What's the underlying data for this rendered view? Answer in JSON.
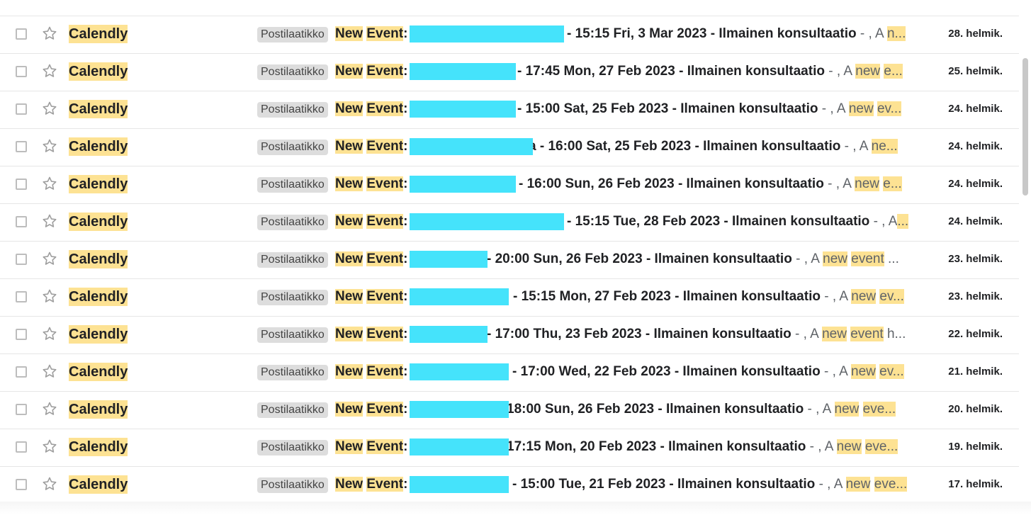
{
  "emails": [
    {
      "sender": "Calendly",
      "label": "Postilaatikko",
      "subject_word1": "New",
      "subject_word2": "Event",
      "subject_colon": ":",
      "tail": "- 15:15 Fri, 3 Mar 2023 - Ilmainen konsultaatio",
      "snippet_pre": " - , A ",
      "snippet_hl1": "n...",
      "snippet_hl2": "",
      "snippet_post": "",
      "date": "28. helmik."
    },
    {
      "sender": "Calendly",
      "label": "Postilaatikko",
      "subject_word1": "New",
      "subject_word2": "Event",
      "subject_colon": ":",
      "tail": "- 17:45 Mon, 27 Feb 2023 - Ilmainen konsultaatio",
      "snippet_pre": " - , A ",
      "snippet_hl1": "new",
      "snippet_hl2": "e...",
      "snippet_post": "",
      "date": "25. helmik."
    },
    {
      "sender": "Calendly",
      "label": "Postilaatikko",
      "subject_word1": "New",
      "subject_word2": "Event",
      "subject_colon": ":",
      "tail": "- 15:00 Sat, 25 Feb 2023 - Ilmainen konsultaatio",
      "snippet_pre": " - , A ",
      "snippet_hl1": "new",
      "snippet_hl2": "ev...",
      "snippet_post": "",
      "date": "24. helmik."
    },
    {
      "sender": "Calendly",
      "label": "Postilaatikko",
      "subject_word1": "New",
      "subject_word2": "Event",
      "subject_colon": ":",
      "tail": "a - 16:00 Sat, 25 Feb 2023 - Ilmainen konsultaatio",
      "snippet_pre": " - , A ",
      "snippet_hl1": "ne...",
      "snippet_hl2": "",
      "snippet_post": "",
      "date": "24. helmik."
    },
    {
      "sender": "Calendly",
      "label": "Postilaatikko",
      "subject_word1": "New",
      "subject_word2": "Event",
      "subject_colon": ":",
      "tail": "- 16:00 Sun, 26 Feb 2023 - Ilmainen konsultaatio",
      "snippet_pre": " - , A ",
      "snippet_hl1": "new",
      "snippet_hl2": "e...",
      "snippet_post": "",
      "date": "24. helmik."
    },
    {
      "sender": "Calendly",
      "label": "Postilaatikko",
      "subject_word1": "New",
      "subject_word2": "Event",
      "subject_colon": ":",
      "tail": "- 15:15 Tue, 28 Feb 2023 - Ilmainen konsultaatio",
      "snippet_pre": " - , A",
      "snippet_hl1": "...",
      "snippet_hl2": "",
      "snippet_post": "",
      "date": "24. helmik."
    },
    {
      "sender": "Calendly",
      "label": "Postilaatikko",
      "subject_word1": "New",
      "subject_word2": "Event",
      "subject_colon": ":",
      "tail": "- 20:00 Sun, 26 Feb 2023 - Ilmainen konsultaatio",
      "snippet_pre": " - , A ",
      "snippet_hl1": "new",
      "snippet_hl2": "event",
      "snippet_post": " ...",
      "date": "23. helmik."
    },
    {
      "sender": "Calendly",
      "label": "Postilaatikko",
      "subject_word1": "New",
      "subject_word2": "Event",
      "subject_colon": ":",
      "tail": "- 15:15 Mon, 27 Feb 2023 - Ilmainen konsultaatio",
      "snippet_pre": " - , A ",
      "snippet_hl1": "new",
      "snippet_hl2": "ev...",
      "snippet_post": "",
      "date": "23. helmik."
    },
    {
      "sender": "Calendly",
      "label": "Postilaatikko",
      "subject_word1": "New",
      "subject_word2": "Event",
      "subject_colon": ":",
      "tail": "- 17:00 Thu, 23 Feb 2023 - Ilmainen konsultaatio",
      "snippet_pre": " - , A ",
      "snippet_hl1": "new",
      "snippet_hl2": "event",
      "snippet_post": " h...",
      "date": "22. helmik."
    },
    {
      "sender": "Calendly",
      "label": "Postilaatikko",
      "subject_word1": "New",
      "subject_word2": "Event",
      "subject_colon": ":",
      "tail": "- 17:00 Wed, 22 Feb 2023 - Ilmainen konsultaatio",
      "snippet_pre": " - , A ",
      "snippet_hl1": "new",
      "snippet_hl2": "ev...",
      "snippet_post": "",
      "date": "21. helmik."
    },
    {
      "sender": "Calendly",
      "label": "Postilaatikko",
      "subject_word1": "New",
      "subject_word2": "Event",
      "subject_colon": ":",
      "tail": "18:00 Sun, 26 Feb 2023 - Ilmainen konsultaatio",
      "snippet_pre": " - , A ",
      "snippet_hl1": "new",
      "snippet_hl2": "eve...",
      "snippet_post": "",
      "date": "20. helmik."
    },
    {
      "sender": "Calendly",
      "label": "Postilaatikko",
      "subject_word1": "New",
      "subject_word2": "Event",
      "subject_colon": ":",
      "tail": "17:15 Mon, 20 Feb 2023 - Ilmainen konsultaatio",
      "snippet_pre": " - , A ",
      "snippet_hl1": "new",
      "snippet_hl2": "eve...",
      "snippet_post": "",
      "date": "19. helmik."
    },
    {
      "sender": "Calendly",
      "label": "Postilaatikko",
      "subject_word1": "New",
      "subject_word2": "Event",
      "subject_colon": ":",
      "tail": "- 15:00 Tue, 21 Feb 2023 - Ilmainen konsultaatio",
      "snippet_pre": " - , A ",
      "snippet_hl1": "new",
      "snippet_hl2": "eve...",
      "snippet_post": "",
      "date": "17. helmik."
    }
  ],
  "colors": {
    "highlight": "#fde293",
    "label_bg": "#dddddd",
    "redaction": "#45e3fb",
    "divider": "#e6e6e6"
  },
  "icons": {
    "checkbox": "checkbox-icon",
    "star": "star-outline-icon"
  }
}
